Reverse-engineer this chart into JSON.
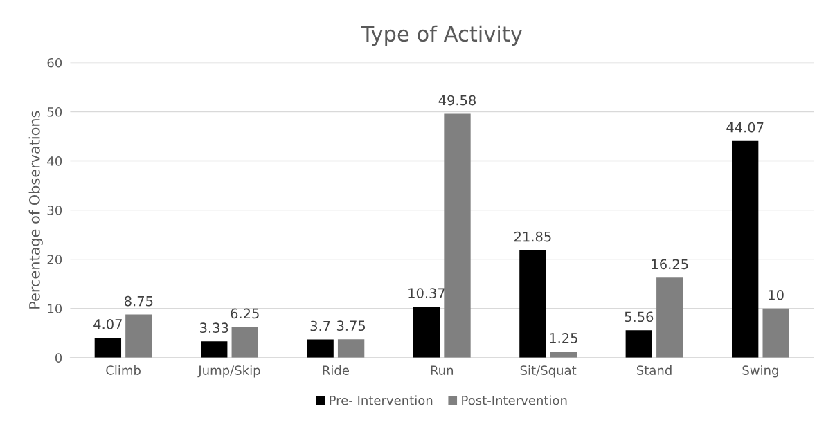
{
  "chart_data": {
    "type": "bar",
    "title": "Type of Activity",
    "ylabel": "Percentage of Observations",
    "categories": [
      "Climb",
      "Jump/Skip",
      "Ride",
      "Run",
      "Sit/Squat",
      "Stand",
      "Swing"
    ],
    "series": [
      {
        "name": "Pre- Intervention",
        "color": "#000000",
        "values": [
          4.07,
          3.33,
          3.7,
          10.37,
          21.85,
          5.56,
          44.07
        ]
      },
      {
        "name": "Post-Intervention",
        "color": "#808080",
        "values": [
          8.75,
          6.25,
          3.75,
          49.58,
          1.25,
          16.25,
          10
        ]
      }
    ],
    "ylim": [
      0,
      60
    ],
    "yticks": [
      0,
      10,
      20,
      30,
      40,
      50,
      60
    ],
    "grid": "y",
    "legend": "bottom",
    "data_labels": true
  }
}
